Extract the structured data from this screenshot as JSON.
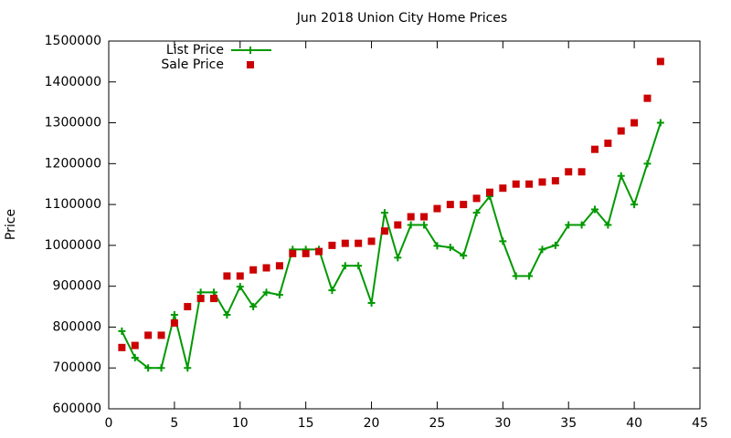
{
  "chart_data": {
    "type": "line",
    "title": "Jun 2018 Union City Home Prices",
    "ylabel": "Price",
    "x": [
      1,
      2,
      3,
      4,
      5,
      6,
      7,
      8,
      9,
      10,
      11,
      12,
      13,
      14,
      15,
      16,
      17,
      18,
      19,
      20,
      21,
      22,
      23,
      24,
      25,
      26,
      27,
      28,
      29,
      30,
      31,
      32,
      33,
      34,
      35,
      36,
      37,
      38,
      39,
      40,
      41,
      42
    ],
    "series": [
      {
        "name": "List Price",
        "color": "#009900",
        "style": "linespoints",
        "values": [
          790000,
          725000,
          700000,
          700000,
          830000,
          700000,
          885000,
          885000,
          830000,
          899000,
          850000,
          885000,
          879000,
          990000,
          990000,
          990000,
          890000,
          950000,
          950000,
          859000,
          1080000,
          970000,
          1050000,
          1050000,
          999000,
          995000,
          975000,
          1080000,
          1120000,
          1010000,
          925000,
          925000,
          990000,
          1000000,
          1050000,
          1050000,
          1088000,
          1050000,
          1170000,
          1100000,
          1200000,
          1300000
        ]
      },
      {
        "name": "Sale Price",
        "color": "#cc0000",
        "style": "points",
        "values": [
          750000,
          755000,
          780000,
          780000,
          810000,
          850000,
          870000,
          870000,
          925000,
          925000,
          940000,
          945000,
          950000,
          980000,
          980000,
          985000,
          1000000,
          1005000,
          1005000,
          1010000,
          1035000,
          1050000,
          1070000,
          1070000,
          1090000,
          1100000,
          1100000,
          1115000,
          1130000,
          1140000,
          1150000,
          1150000,
          1155000,
          1158000,
          1180000,
          1180000,
          1235000,
          1250000,
          1280000,
          1300000,
          1360000,
          1450000
        ]
      }
    ],
    "xlim": [
      0,
      45
    ],
    "xticks": [
      0,
      5,
      10,
      15,
      20,
      25,
      30,
      35,
      40,
      45
    ],
    "ylim": [
      600000,
      1500000
    ],
    "yticks": [
      600000,
      700000,
      800000,
      900000,
      1000000,
      1100000,
      1200000,
      1300000,
      1400000,
      1500000
    ],
    "legend": "top-left",
    "grid": false
  }
}
